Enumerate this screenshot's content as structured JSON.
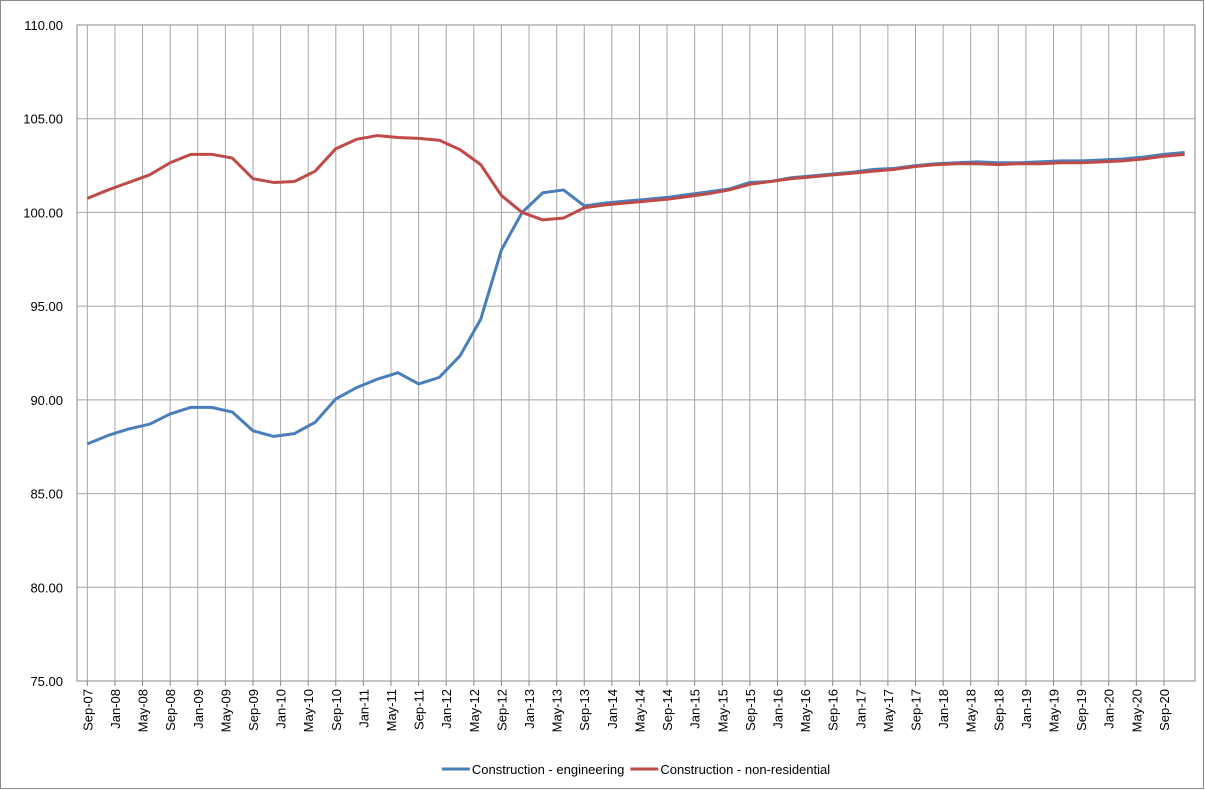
{
  "chart_data": {
    "type": "line",
    "x": [
      "2007-09",
      "2007-12",
      "2008-03",
      "2008-06",
      "2008-09",
      "2008-12",
      "2009-03",
      "2009-06",
      "2009-09",
      "2009-12",
      "2010-03",
      "2010-06",
      "2010-09",
      "2010-12",
      "2011-03",
      "2011-06",
      "2011-09",
      "2011-12",
      "2012-03",
      "2012-06",
      "2012-09",
      "2012-12",
      "2013-03",
      "2013-06",
      "2013-09",
      "2013-12",
      "2014-03",
      "2014-06",
      "2014-09",
      "2014-12",
      "2015-03",
      "2015-06",
      "2015-09",
      "2015-12",
      "2016-03",
      "2016-06",
      "2016-09",
      "2016-12",
      "2017-03",
      "2017-06",
      "2017-09",
      "2017-12",
      "2018-03",
      "2018-06",
      "2018-09",
      "2018-12",
      "2019-03",
      "2019-06",
      "2019-09",
      "2019-12",
      "2020-03",
      "2020-06",
      "2020-09",
      "2020-12"
    ],
    "xticks": [
      {
        "value": "2007-09",
        "label": "Sep-07"
      },
      {
        "value": "2008-01",
        "label": "Jan-08"
      },
      {
        "value": "2008-05",
        "label": "May-08"
      },
      {
        "value": "2008-09",
        "label": "Sep-08"
      },
      {
        "value": "2009-01",
        "label": "Jan-09"
      },
      {
        "value": "2009-05",
        "label": "May-09"
      },
      {
        "value": "2009-09",
        "label": "Sep-09"
      },
      {
        "value": "2010-01",
        "label": "Jan-10"
      },
      {
        "value": "2010-05",
        "label": "May-10"
      },
      {
        "value": "2010-09",
        "label": "Sep-10"
      },
      {
        "value": "2011-01",
        "label": "Jan-11"
      },
      {
        "value": "2011-05",
        "label": "May-11"
      },
      {
        "value": "2011-09",
        "label": "Sep-11"
      },
      {
        "value": "2012-01",
        "label": "Jan-12"
      },
      {
        "value": "2012-05",
        "label": "May-12"
      },
      {
        "value": "2012-09",
        "label": "Sep-12"
      },
      {
        "value": "2013-01",
        "label": "Jan-13"
      },
      {
        "value": "2013-05",
        "label": "May-13"
      },
      {
        "value": "2013-09",
        "label": "Sep-13"
      },
      {
        "value": "2014-01",
        "label": "Jan-14"
      },
      {
        "value": "2014-05",
        "label": "May-14"
      },
      {
        "value": "2014-09",
        "label": "Sep-14"
      },
      {
        "value": "2015-01",
        "label": "Jan-15"
      },
      {
        "value": "2015-05",
        "label": "May-15"
      },
      {
        "value": "2015-09",
        "label": "Sep-15"
      },
      {
        "value": "2016-01",
        "label": "Jan-16"
      },
      {
        "value": "2016-05",
        "label": "May-16"
      },
      {
        "value": "2016-09",
        "label": "Sep-16"
      },
      {
        "value": "2017-01",
        "label": "Jan-17"
      },
      {
        "value": "2017-05",
        "label": "May-17"
      },
      {
        "value": "2017-09",
        "label": "Sep-17"
      },
      {
        "value": "2018-01",
        "label": "Jan-18"
      },
      {
        "value": "2018-05",
        "label": "May-18"
      },
      {
        "value": "2018-09",
        "label": "Sep-18"
      },
      {
        "value": "2019-01",
        "label": "Jan-19"
      },
      {
        "value": "2019-05",
        "label": "May-19"
      },
      {
        "value": "2019-09",
        "label": "Sep-19"
      },
      {
        "value": "2020-01",
        "label": "Jan-20"
      },
      {
        "value": "2020-05",
        "label": "May-20"
      },
      {
        "value": "2020-09",
        "label": "Sep-20"
      }
    ],
    "ylim": [
      75,
      110
    ],
    "yticks": [
      {
        "value": 75,
        "label": "75.00"
      },
      {
        "value": 80,
        "label": "80.00"
      },
      {
        "value": 85,
        "label": "85.00"
      },
      {
        "value": 90,
        "label": "90.00"
      },
      {
        "value": 95,
        "label": "95.00"
      },
      {
        "value": 100,
        "label": "100.00"
      },
      {
        "value": 105,
        "label": "105.00"
      },
      {
        "value": 110,
        "label": "110.00"
      }
    ],
    "grid": true,
    "legend": "bottom",
    "series": [
      {
        "name": "Construction - engineering",
        "color": "#4a7ebb",
        "values": [
          87.65,
          88.1,
          88.45,
          88.7,
          89.25,
          89.6,
          89.6,
          89.35,
          88.35,
          88.05,
          88.2,
          88.8,
          90.05,
          90.65,
          91.1,
          91.45,
          90.85,
          91.2,
          92.35,
          94.3,
          98.0,
          100.0,
          101.05,
          101.2,
          100.35,
          100.5,
          100.6,
          100.7,
          100.8,
          100.95,
          101.1,
          101.25,
          101.6,
          101.65,
          101.85,
          101.95,
          102.05,
          102.15,
          102.3,
          102.35,
          102.5,
          102.6,
          102.65,
          102.7,
          102.65,
          102.65,
          102.7,
          102.75,
          102.75,
          102.8,
          102.85,
          102.95,
          103.1,
          103.2
        ]
      },
      {
        "name": "Construction - non-residential",
        "color": "#be4b48",
        "values": [
          100.75,
          101.2,
          101.6,
          102.0,
          102.65,
          103.1,
          103.1,
          102.9,
          101.8,
          101.6,
          101.65,
          102.2,
          103.4,
          103.9,
          104.1,
          104.0,
          103.95,
          103.85,
          103.35,
          102.55,
          100.9,
          100.0,
          99.6,
          99.7,
          100.25,
          100.4,
          100.5,
          100.6,
          100.7,
          100.85,
          101.0,
          101.2,
          101.5,
          101.65,
          101.8,
          101.9,
          102.0,
          102.1,
          102.2,
          102.3,
          102.45,
          102.55,
          102.6,
          102.6,
          102.55,
          102.6,
          102.6,
          102.65,
          102.65,
          102.7,
          102.75,
          102.85,
          103.0,
          103.1
        ]
      }
    ]
  }
}
